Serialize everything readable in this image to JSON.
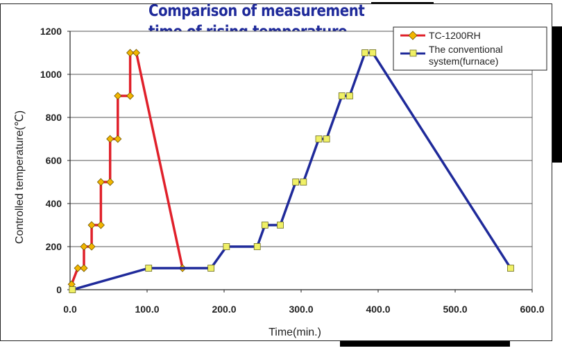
{
  "chart_data": {
    "type": "line",
    "title_lines": [
      "Comparison of measurement",
      "time of rising temperature"
    ],
    "xlabel": "Time(min.)",
    "ylabel": "Controlled temperature(℃)",
    "xlim": [
      0,
      600
    ],
    "ylim": [
      0,
      1200
    ],
    "x_ticks": [
      "0.0",
      "100.0",
      "200.0",
      "300.0",
      "400.0",
      "500.0",
      "600.0"
    ],
    "y_ticks": [
      "0",
      "200",
      "400",
      "600",
      "800",
      "1000",
      "1200"
    ],
    "grid": "horizontal",
    "legend_position": "top-right",
    "series": [
      {
        "name": "TC-1200RH",
        "color": "#e0202a",
        "marker": "diamond",
        "marker_color": "#f2b600",
        "points": [
          [
            2,
            25
          ],
          [
            10,
            100
          ],
          [
            18,
            100
          ],
          [
            18,
            200
          ],
          [
            28,
            200
          ],
          [
            28,
            300
          ],
          [
            40,
            300
          ],
          [
            40,
            500
          ],
          [
            52,
            500
          ],
          [
            52,
            700
          ],
          [
            62,
            700
          ],
          [
            62,
            900
          ],
          [
            78,
            900
          ],
          [
            78,
            1100
          ],
          [
            86,
            1100
          ],
          [
            146,
            100
          ]
        ]
      },
      {
        "name": "The conventional system(furnace)",
        "name_lines": [
          "The conventional",
          "system(furnace)"
        ],
        "color": "#1f2a9a",
        "marker": "square",
        "marker_color": "#f0f066",
        "points": [
          [
            3,
            0
          ],
          [
            102,
            100
          ],
          [
            183,
            100
          ],
          [
            203,
            200
          ],
          [
            243,
            200
          ],
          [
            253,
            300
          ],
          [
            273,
            300
          ],
          [
            293,
            500
          ],
          [
            303,
            500
          ],
          [
            323,
            700
          ],
          [
            333,
            700
          ],
          [
            353,
            900
          ],
          [
            363,
            900
          ],
          [
            383,
            1100
          ],
          [
            393,
            1100
          ],
          [
            572,
            100
          ]
        ]
      }
    ]
  }
}
